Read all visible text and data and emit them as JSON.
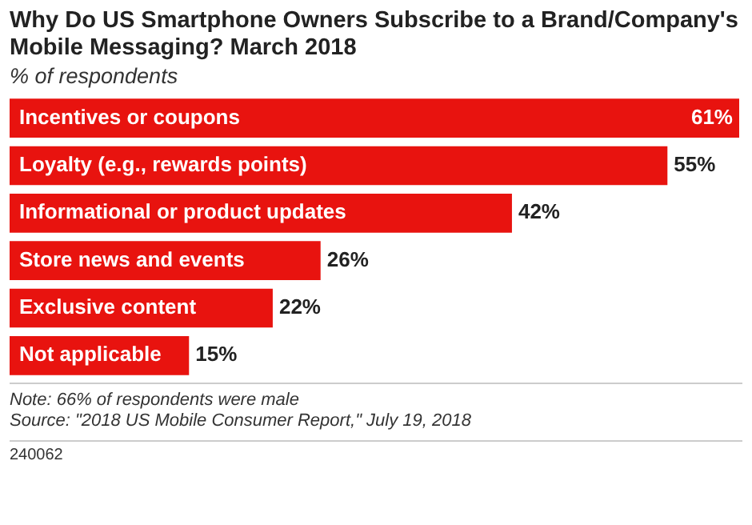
{
  "chart_data": {
    "type": "bar",
    "orientation": "horizontal",
    "title": "Why Do US Smartphone Owners Subscribe to a Brand/Company's Mobile Messaging? March 2018",
    "subtitle": "% of respondents",
    "categories": [
      "Incentives or coupons",
      "Loyalty (e.g., rewards points)",
      "Informational or product updates",
      "Store news and events",
      "Exclusive content",
      "Not applicable"
    ],
    "values": [
      61,
      55,
      42,
      26,
      22,
      15
    ],
    "value_labels": [
      "61%",
      "55%",
      "42%",
      "26%",
      "22%",
      "15%"
    ],
    "color": "#e8130f",
    "annotations": [
      "Note: 66% of respondents were male",
      "Source: \"2018 US Mobile Consumer Report,\" July 19, 2018",
      "240062"
    ]
  }
}
